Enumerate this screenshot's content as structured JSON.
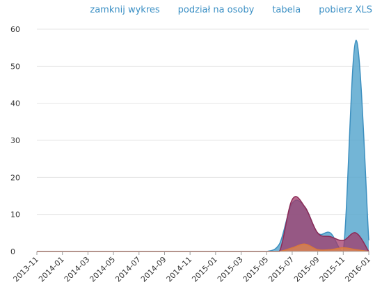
{
  "toolbar": {
    "close_chart": "zamknij wykres",
    "per_person": "podział na osoby",
    "table": "tabela",
    "download_xls": "pobierz XLS"
  },
  "chart_data": {
    "type": "area",
    "title": "",
    "xlabel": "",
    "ylabel": "",
    "ylim": [
      0,
      60
    ],
    "y_ticks": [
      "0",
      "10",
      "20",
      "30",
      "40",
      "50",
      "60"
    ],
    "x_ticks": [
      "2013-11",
      "2014-01",
      "2014-03",
      "2014-05",
      "2014-07",
      "2014-09",
      "2014-11",
      "2015-01",
      "2015-03",
      "2015-05",
      "2015-07",
      "2015-09",
      "2015-11",
      "2016-01"
    ],
    "grid": true,
    "legend": "none",
    "smooth": true,
    "categories": [
      "2013-11",
      "2013-12",
      "2014-01",
      "2014-02",
      "2014-03",
      "2014-04",
      "2014-05",
      "2014-06",
      "2014-07",
      "2014-08",
      "2014-09",
      "2014-10",
      "2014-11",
      "2014-12",
      "2015-01",
      "2015-02",
      "2015-03",
      "2015-04",
      "2015-05",
      "2015-06",
      "2015-07",
      "2015-08",
      "2015-09",
      "2015-10",
      "2015-11",
      "2015-12",
      "2016-01"
    ],
    "series": [
      {
        "color": "#5ba8cf",
        "stroke": "#3c8fbf",
        "values": [
          0,
          0,
          0,
          0,
          0,
          0,
          0,
          0,
          0,
          0,
          0,
          0,
          0,
          0,
          0,
          0,
          0,
          0,
          0,
          2,
          13,
          12,
          5,
          5,
          0,
          57,
          3
        ]
      },
      {
        "color": "#a23a68",
        "stroke": "#8c2a56",
        "values": [
          0,
          0,
          0,
          0,
          0,
          0,
          0,
          0,
          0,
          0,
          0,
          0,
          0,
          0,
          0,
          0,
          0,
          0,
          0,
          0,
          14,
          12,
          5,
          4,
          3,
          5,
          0
        ]
      },
      {
        "color": "#e0884a",
        "stroke": "#d9783a",
        "values": [
          0,
          0,
          0,
          0,
          0,
          0,
          0,
          0,
          0,
          0,
          0,
          0,
          0,
          0,
          0,
          0,
          0,
          0,
          0,
          0,
          1,
          2,
          0.5,
          0.5,
          1,
          0.5,
          0
        ]
      }
    ]
  }
}
